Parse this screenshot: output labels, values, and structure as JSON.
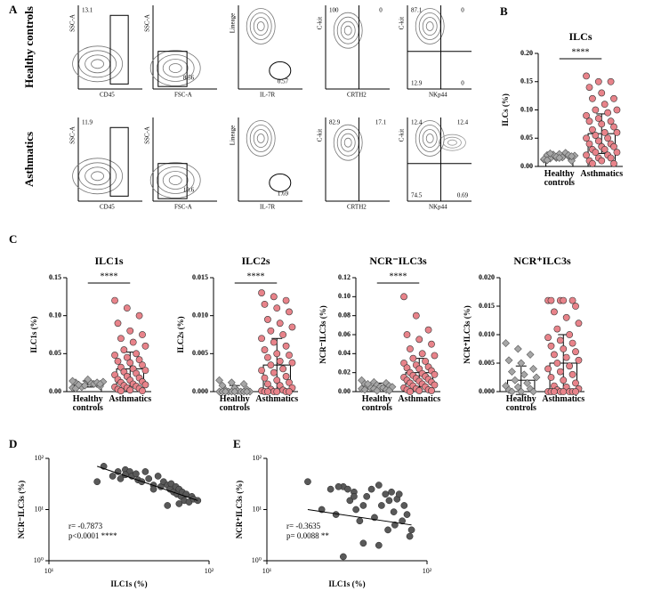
{
  "panel_labels": [
    "A",
    "B",
    "C",
    "D",
    "E"
  ],
  "panel_a": {
    "rows": [
      {
        "label": "Healthy controls",
        "plots": [
          {
            "y_label": "SSC-A",
            "x_label": "CD45",
            "gates": [
              "13.1"
            ]
          },
          {
            "y_label": "SSC-A",
            "x_label": "FSC-A",
            "gates": [
              "8.56"
            ]
          },
          {
            "y_label": "Lineage",
            "x_label": "IL-7R",
            "gates": [
              "0.57"
            ]
          },
          {
            "y_label": "C-kit",
            "x_label": "CRTH2",
            "gates": [
              "100",
              "0"
            ]
          },
          {
            "y_label": "C-kit",
            "x_label": "NKp44",
            "gates": [
              "87.1",
              "0",
              "12.9",
              "0"
            ]
          }
        ]
      },
      {
        "label": "Asthmatics",
        "plots": [
          {
            "y_label": "SSC-A",
            "x_label": "CD45",
            "gates": [
              "11.9"
            ]
          },
          {
            "y_label": "SSC-A",
            "x_label": "FSC-A",
            "gates": [
              "10.6"
            ]
          },
          {
            "y_label": "Lineage",
            "x_label": "IL-7R",
            "gates": [
              "1.69"
            ]
          },
          {
            "y_label": "C-kit",
            "x_label": "CRTH2",
            "gates": [
              "82.9",
              "17.1"
            ]
          },
          {
            "y_label": "C-kit",
            "x_label": "NKp44",
            "gates": [
              "12.4",
              "12.4",
              "74.5",
              "0.69"
            ]
          }
        ]
      }
    ]
  },
  "chart_data": [
    {
      "type": "bar",
      "title": "ILCs",
      "y_label": "ILCs (%)",
      "categories": [
        "Healthy controls",
        "Asthmatics"
      ],
      "colors": [
        "#a6a6a6",
        "#e8838a"
      ],
      "markers": [
        "diamond",
        "circle"
      ],
      "significance": "****",
      "ylim": [
        0,
        0.2
      ],
      "yticks": [
        {
          "value": 0,
          "label": "0.00"
        },
        {
          "value": 0.05,
          "label": "0.05"
        },
        {
          "value": 0.1,
          "label": "0.10"
        },
        {
          "value": 0.15,
          "label": "0.15"
        },
        {
          "value": 0.2,
          "label": "0.20"
        }
      ],
      "means": [
        0.017,
        0.058
      ],
      "sd": [
        0.004,
        0.035
      ],
      "points": [
        [
          0.012,
          0.015,
          0.018,
          0.02,
          0.022,
          0.01,
          0.014,
          0.016,
          0.019,
          0.021,
          0.024,
          0.013,
          0.017,
          0.02,
          0.011,
          0.015,
          0.018,
          0.023
        ],
        [
          0.16,
          0.15,
          0.15,
          0.14,
          0.13,
          0.12,
          0.12,
          0.11,
          0.1,
          0.1,
          0.095,
          0.09,
          0.085,
          0.08,
          0.08,
          0.075,
          0.07,
          0.065,
          0.06,
          0.06,
          0.055,
          0.05,
          0.05,
          0.045,
          0.04,
          0.04,
          0.035,
          0.035,
          0.03,
          0.03,
          0.025,
          0.025,
          0.02,
          0.02,
          0.015,
          0.015,
          0.01,
          0.01,
          0.005,
          0.005
        ]
      ]
    },
    {
      "type": "bar",
      "title": "ILC1s",
      "y_label": "ILC1s (%)",
      "categories": [
        "Healthy controls",
        "Asthmatics"
      ],
      "colors": [
        "#a6a6a6",
        "#e8838a"
      ],
      "markers": [
        "diamond",
        "circle"
      ],
      "significance": "****",
      "ylim": [
        0,
        0.15
      ],
      "yticks": [
        {
          "value": 0,
          "label": "0.00"
        },
        {
          "value": 0.05,
          "label": "0.05"
        },
        {
          "value": 0.1,
          "label": "0.10"
        },
        {
          "value": 0.15,
          "label": "0.15"
        }
      ],
      "means": [
        0.01,
        0.03
      ],
      "sd": [
        0.004,
        0.022
      ],
      "points": [
        [
          0.005,
          0.008,
          0.01,
          0.012,
          0.015,
          0.007,
          0.009,
          0.011,
          0.013,
          0.006,
          0.01,
          0.014,
          0.008,
          0.012,
          0.004,
          0.016,
          0.01,
          0.009
        ],
        [
          0.12,
          0.11,
          0.1,
          0.09,
          0.08,
          0.075,
          0.07,
          0.065,
          0.06,
          0.055,
          0.05,
          0.048,
          0.045,
          0.042,
          0.04,
          0.038,
          0.035,
          0.032,
          0.03,
          0.028,
          0.026,
          0.024,
          0.022,
          0.02,
          0.018,
          0.016,
          0.015,
          0.013,
          0.012,
          0.01,
          0.009,
          0.008,
          0.007,
          0.006,
          0.005,
          0.004,
          0.003,
          0.002,
          0.001,
          0.001
        ]
      ]
    },
    {
      "type": "bar",
      "title": "ILC2s",
      "y_label": "ILC2s (%)",
      "categories": [
        "Healthy controls",
        "Asthmatics"
      ],
      "colors": [
        "#a6a6a6",
        "#e8838a"
      ],
      "markers": [
        "diamond",
        "circle"
      ],
      "significance": "****",
      "ylim": [
        0,
        0.015
      ],
      "yticks": [
        {
          "value": 0,
          "label": "0.000"
        },
        {
          "value": 0.005,
          "label": "0.005"
        },
        {
          "value": 0.01,
          "label": "0.010"
        },
        {
          "value": 0.015,
          "label": "0.015"
        }
      ],
      "means": [
        0.0003,
        0.0035
      ],
      "sd": [
        0.0005,
        0.0035
      ],
      "points": [
        [
          0.0015,
          0.0012,
          0.001,
          0.0008,
          0.0005,
          0.0003,
          0.0002,
          0.0001,
          0,
          0,
          0,
          0,
          0,
          0,
          0,
          0,
          0,
          0
        ],
        [
          0.013,
          0.0125,
          0.012,
          0.0115,
          0.011,
          0.0105,
          0.0095,
          0.009,
          0.0085,
          0.008,
          0.0075,
          0.007,
          0.0065,
          0.006,
          0.0055,
          0.005,
          0.0048,
          0.0045,
          0.004,
          0.0038,
          0.0035,
          0.003,
          0.0028,
          0.0025,
          0.002,
          0.0018,
          0.0015,
          0.0012,
          0.001,
          0.0008,
          0.0005,
          0.0003,
          0.0002,
          0.0001,
          0,
          0,
          0,
          0,
          0,
          0
        ]
      ]
    },
    {
      "type": "bar",
      "title": "NCR⁻ILC3s",
      "y_label": "NCR⁻ILC3s (%)",
      "categories": [
        "Healthy controls",
        "Asthmatics"
      ],
      "colors": [
        "#a6a6a6",
        "#e8838a"
      ],
      "markers": [
        "diamond",
        "circle"
      ],
      "significance": "****",
      "ylim": [
        0,
        0.12
      ],
      "yticks": [
        {
          "value": 0,
          "label": "0.00"
        },
        {
          "value": 0.02,
          "label": "0.02"
        },
        {
          "value": 0.04,
          "label": "0.04"
        },
        {
          "value": 0.06,
          "label": "0.06"
        },
        {
          "value": 0.08,
          "label": "0.08"
        },
        {
          "value": 0.1,
          "label": "0.10"
        },
        {
          "value": 0.12,
          "label": "0.12"
        }
      ],
      "means": [
        0.006,
        0.02
      ],
      "sd": [
        0.003,
        0.015
      ],
      "points": [
        [
          0.012,
          0.01,
          0.009,
          0.008,
          0.007,
          0.006,
          0.006,
          0.005,
          0.005,
          0.004,
          0.004,
          0.003,
          0.003,
          0.002,
          0.002,
          0.001,
          0.001,
          0.008
        ],
        [
          0.1,
          0.08,
          0.065,
          0.06,
          0.055,
          0.05,
          0.045,
          0.04,
          0.038,
          0.035,
          0.032,
          0.03,
          0.028,
          0.026,
          0.025,
          0.024,
          0.022,
          0.02,
          0.019,
          0.018,
          0.017,
          0.016,
          0.015,
          0.014,
          0.013,
          0.012,
          0.011,
          0.01,
          0.009,
          0.008,
          0.007,
          0.006,
          0.005,
          0.004,
          0.003,
          0.002,
          0.002,
          0.001,
          0.001,
          0
        ]
      ]
    },
    {
      "type": "bar",
      "title": "NCR⁺ILC3s",
      "y_label": "NCR⁺ILC3s (%)",
      "categories": [
        "Healthy controls",
        "Asthmatics"
      ],
      "colors": [
        "#a6a6a6",
        "#e8838a"
      ],
      "markers": [
        "diamond",
        "circle"
      ],
      "ylim": [
        0,
        0.02
      ],
      "yticks": [
        {
          "value": 0,
          "label": "0.000"
        },
        {
          "value": 0.005,
          "label": "0.005"
        },
        {
          "value": 0.01,
          "label": "0.010"
        },
        {
          "value": 0.015,
          "label": "0.015"
        },
        {
          "value": 0.02,
          "label": "0.020"
        }
      ],
      "means": [
        0.002,
        0.005
      ],
      "sd": [
        0.0025,
        0.005
      ],
      "points": [
        [
          0.0085,
          0.0075,
          0.0065,
          0.0055,
          0.005,
          0.004,
          0.0035,
          0.003,
          0.0025,
          0.002,
          0.0015,
          0.001,
          0.0008,
          0.0005,
          0.0003,
          0,
          0,
          0
        ],
        [
          0.016,
          0.016,
          0.016,
          0.016,
          0.016,
          0.015,
          0.014,
          0.013,
          0.012,
          0.011,
          0.01,
          0.0095,
          0.009,
          0.0085,
          0.008,
          0.0075,
          0.007,
          0.0065,
          0.006,
          0.0055,
          0.005,
          0.0045,
          0.004,
          0.0035,
          0.003,
          0.0025,
          0.002,
          0.0015,
          0.001,
          0.0008,
          0.0005,
          0.0003,
          0,
          0,
          0,
          0,
          0,
          0,
          0,
          0
        ]
      ]
    },
    {
      "type": "scatter",
      "x_label": "ILC1s (%)",
      "y_label": "NCR⁻ILC3s (%)",
      "color": "#595959",
      "log_x": true,
      "log_y": true,
      "annotations": [
        "r= -0.7873",
        "p<0.0001 ****"
      ],
      "xlim": [
        10,
        100
      ],
      "xticks": [
        {
          "value": 10,
          "label": "10¹"
        },
        {
          "value": 100,
          "label": "10²"
        }
      ],
      "ylim": [
        1,
        100
      ],
      "yticks": [
        {
          "value": 1,
          "label": "10⁰"
        },
        {
          "value": 10,
          "label": "10¹"
        },
        {
          "value": 100,
          "label": "10²"
        }
      ],
      "x": [
        20,
        22,
        25,
        27,
        28,
        30,
        32,
        33,
        35,
        36,
        38,
        40,
        42,
        45,
        48,
        50,
        52,
        55,
        57,
        58,
        60,
        62,
        63,
        65,
        67,
        68,
        70,
        72,
        75,
        78,
        80,
        85,
        55,
        65,
        45,
        30
      ],
      "y": [
        35,
        70,
        45,
        55,
        40,
        60,
        55,
        45,
        50,
        38,
        35,
        55,
        40,
        30,
        45,
        28,
        35,
        30,
        25,
        32,
        22,
        28,
        20,
        25,
        18,
        22,
        15,
        20,
        14,
        18,
        16,
        15,
        12,
        13,
        25,
        48
      ],
      "fit": {
        "x": [
          20,
          85
        ],
        "y": [
          70,
          15
        ]
      }
    },
    {
      "type": "scatter",
      "x_label": "ILC1s (%)",
      "y_label": "NCR⁺ILC3s (%)",
      "color": "#595959",
      "log_x": true,
      "log_y": true,
      "annotations": [
        "r= -0.3635",
        "p= 0.0088 **"
      ],
      "xlim": [
        10,
        100
      ],
      "xticks": [
        {
          "value": 10,
          "label": "10¹"
        },
        {
          "value": 100,
          "label": "10²"
        }
      ],
      "ylim": [
        1,
        100
      ],
      "yticks": [
        {
          "value": 1,
          "label": "10⁰"
        },
        {
          "value": 10,
          "label": "10¹"
        },
        {
          "value": 100,
          "label": "10²"
        }
      ],
      "x": [
        18,
        22,
        25,
        27,
        30,
        32,
        33,
        35,
        36,
        38,
        40,
        42,
        45,
        47,
        50,
        52,
        55,
        57,
        58,
        60,
        62,
        63,
        65,
        67,
        70,
        72,
        75,
        78,
        80,
        30,
        40,
        50,
        28,
        35
      ],
      "y": [
        35,
        10,
        25,
        8,
        28,
        25,
        15,
        22,
        10,
        6,
        12,
        18,
        25,
        7,
        30,
        12,
        20,
        4,
        15,
        22,
        9,
        5,
        16,
        20,
        6,
        12,
        8,
        3,
        4,
        1.2,
        2.2,
        2,
        28,
        18
      ],
      "fit": {
        "x": [
          18,
          80
        ],
        "y": [
          10,
          5
        ]
      }
    }
  ]
}
